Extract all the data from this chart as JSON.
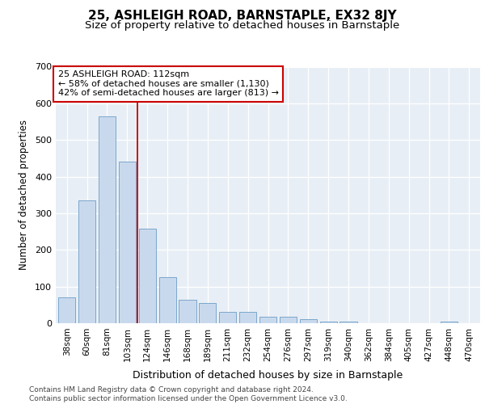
{
  "title": "25, ASHLEIGH ROAD, BARNSTAPLE, EX32 8JY",
  "subtitle": "Size of property relative to detached houses in Barnstaple",
  "xlabel": "Distribution of detached houses by size in Barnstaple",
  "ylabel": "Number of detached properties",
  "categories": [
    "38sqm",
    "60sqm",
    "81sqm",
    "103sqm",
    "124sqm",
    "146sqm",
    "168sqm",
    "189sqm",
    "211sqm",
    "232sqm",
    "254sqm",
    "276sqm",
    "297sqm",
    "319sqm",
    "340sqm",
    "362sqm",
    "384sqm",
    "405sqm",
    "427sqm",
    "448sqm",
    "470sqm"
  ],
  "values": [
    70,
    335,
    565,
    440,
    258,
    125,
    65,
    55,
    30,
    30,
    17,
    17,
    12,
    5,
    5,
    1,
    1,
    1,
    1,
    5,
    1
  ],
  "bar_color": "#c9d9ed",
  "bar_edge_color": "#7ba7cc",
  "red_line_x": 3.5,
  "annotation_line1": "25 ASHLEIGH ROAD: 112sqm",
  "annotation_line2": "← 58% of detached houses are smaller (1,130)",
  "annotation_line3": "42% of semi-detached houses are larger (813) →",
  "annotation_box_color": "#ffffff",
  "annotation_box_edge": "#cc0000",
  "ylim": [
    0,
    700
  ],
  "yticks": [
    0,
    100,
    200,
    300,
    400,
    500,
    600,
    700
  ],
  "plot_bg": "#e8eef5",
  "footer_line1": "Contains HM Land Registry data © Crown copyright and database right 2024.",
  "footer_line2": "Contains public sector information licensed under the Open Government Licence v3.0.",
  "title_fontsize": 11,
  "subtitle_fontsize": 9.5
}
